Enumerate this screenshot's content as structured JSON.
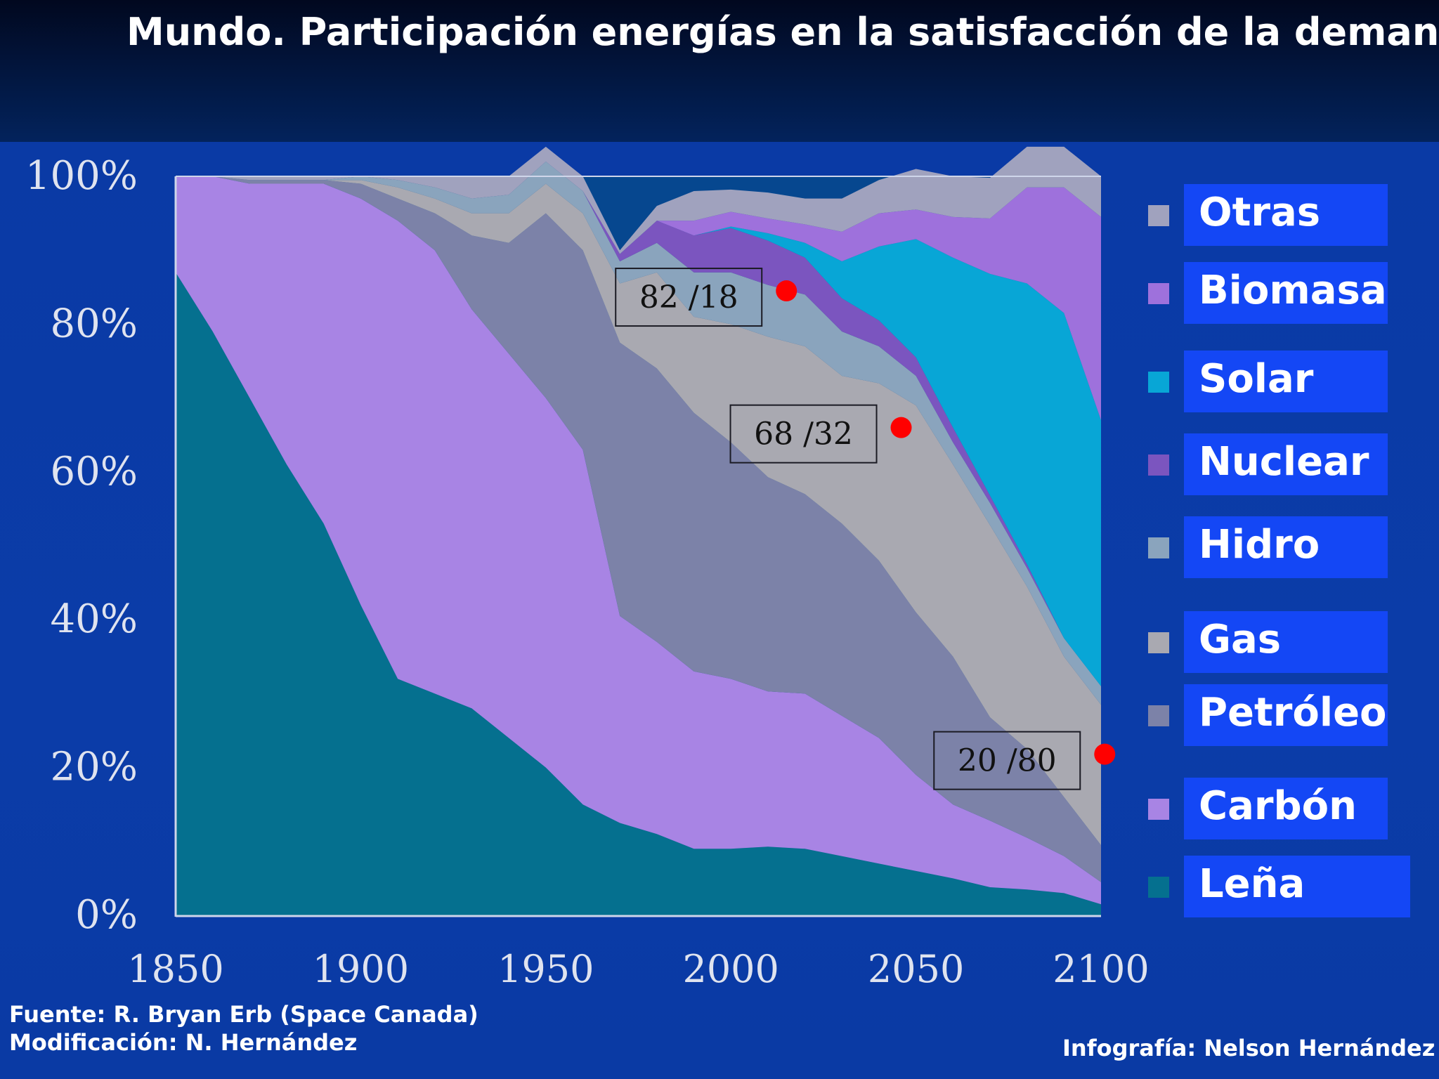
{
  "title": "Mundo. Participación energías en la satisfacción de la demanda",
  "footer": {
    "source": "Fuente:  R. Bryan Erb (Space Canada)",
    "modification": "Modificación: N. Hernández",
    "credit": "Infografía: Nelson Hernández"
  },
  "colors": {
    "background": "#0b3aa6",
    "legend_box": "#1447f5",
    "marker": "#ff0000"
  },
  "chart_data": {
    "type": "area",
    "stacked": true,
    "percent": true,
    "title": "Mundo. Participación energías en la satisfacción de la demanda",
    "xlabel": "",
    "ylabel": "",
    "xlim": [
      1850,
      2100
    ],
    "ylim": [
      0,
      100
    ],
    "x_ticks": [
      1850,
      1900,
      1950,
      2000,
      2050,
      2100
    ],
    "x_tick_labels": [
      "1850",
      "1900",
      "1950",
      "2000",
      "2050",
      "2100"
    ],
    "y_ticks": [
      0,
      20,
      40,
      60,
      80,
      100
    ],
    "y_tick_labels": [
      "0%",
      "20%",
      "40%",
      "60%",
      "80%",
      "100%"
    ],
    "legend_position": "right",
    "x": [
      1850,
      1860,
      1870,
      1880,
      1890,
      1900,
      1910,
      1920,
      1930,
      1940,
      1950,
      1960,
      1970,
      1980,
      1990,
      2000,
      2010,
      2020,
      2030,
      2040,
      2050,
      2060,
      2070,
      2080,
      2090,
      2100
    ],
    "series": [
      {
        "name": "Leña",
        "color": "#05708f",
        "values": [
          87,
          79,
          70,
          61,
          53,
          42,
          32,
          30,
          28,
          24,
          20,
          15,
          12.5,
          11,
          9,
          9,
          9.3,
          9,
          8,
          7,
          6,
          5,
          3.8,
          3.5,
          3,
          1.5
        ]
      },
      {
        "name": "Carbón",
        "color": "#a884e4",
        "values": [
          13,
          21,
          29,
          38,
          46,
          55,
          62,
          60,
          54,
          52,
          50,
          48,
          28,
          26,
          24,
          23,
          21,
          21,
          19,
          17,
          13,
          10,
          9,
          7,
          5,
          3
        ]
      },
      {
        "name": "Petróleo",
        "color": "#7c82a8",
        "values": [
          0,
          0,
          0.5,
          0.5,
          0.5,
          2,
          3,
          5,
          10,
          15,
          25,
          27,
          37,
          37,
          35,
          32,
          29,
          27,
          26,
          24,
          22,
          20,
          14,
          12,
          8,
          5
        ]
      },
      {
        "name": "Gas",
        "color": "#a9a9b1",
        "values": [
          0,
          0,
          0,
          0,
          0,
          0.5,
          1.5,
          2,
          3,
          4,
          4,
          5,
          8,
          13,
          13,
          16,
          19,
          20,
          20,
          24,
          28,
          26,
          26,
          22,
          19,
          19
        ]
      },
      {
        "name": "Hidro",
        "color": "#8aa4bd",
        "values": [
          0,
          0,
          0,
          0,
          0,
          0.5,
          1,
          1.5,
          2,
          2.5,
          3,
          3,
          3,
          4,
          6,
          7,
          7,
          7,
          6,
          5,
          4,
          3,
          3,
          2.5,
          2.5,
          2.5
        ]
      },
      {
        "name": "Nuclear",
        "color": "#7b55bf",
        "values": [
          0,
          0,
          0,
          0,
          0,
          0,
          0,
          0,
          0,
          0,
          0,
          0,
          1,
          3,
          5,
          6,
          6,
          5,
          4.5,
          3.5,
          2.5,
          2,
          1,
          0.5,
          0,
          0
        ]
      },
      {
        "name": "Solar",
        "color": "#08a6d6",
        "values": [
          0,
          0,
          0,
          0,
          0,
          0,
          0,
          0,
          0,
          0,
          0,
          0,
          0,
          0,
          0,
          0.2,
          1,
          2,
          5,
          10,
          16,
          23,
          30,
          38,
          44,
          36
        ]
      },
      {
        "name": "Biomasa",
        "color": "#9e71dc",
        "values": [
          0,
          0,
          0,
          0,
          0,
          0,
          0,
          0,
          0,
          0,
          0,
          0,
          0,
          0,
          2,
          2,
          2,
          2.5,
          4,
          4.5,
          4,
          5.5,
          7.5,
          13,
          17,
          27.5
        ]
      },
      {
        "name": "Otras",
        "color": "#a0a2be",
        "values": [
          0,
          0,
          0.5,
          0.5,
          0.5,
          0,
          0.5,
          1.5,
          3,
          2.5,
          2,
          2,
          0.5,
          2,
          4,
          3,
          3.5,
          3.5,
          4.5,
          4.5,
          5.5,
          5.5,
          5.5,
          5.5,
          5.5,
          5.5
        ]
      }
    ],
    "legend_order": [
      "Otras",
      "Biomasa",
      "Solar",
      "Nuclear",
      "Hidro",
      "Gas",
      "Petróleo",
      "Carbón",
      "Leña"
    ],
    "annotations": [
      {
        "label": "82  /18",
        "year": 2015,
        "value": 84.5
      },
      {
        "label": "68  /32",
        "year": 2046,
        "value": 66
      },
      {
        "label": "20  /80",
        "year": 2101,
        "value": 21.8
      }
    ]
  }
}
